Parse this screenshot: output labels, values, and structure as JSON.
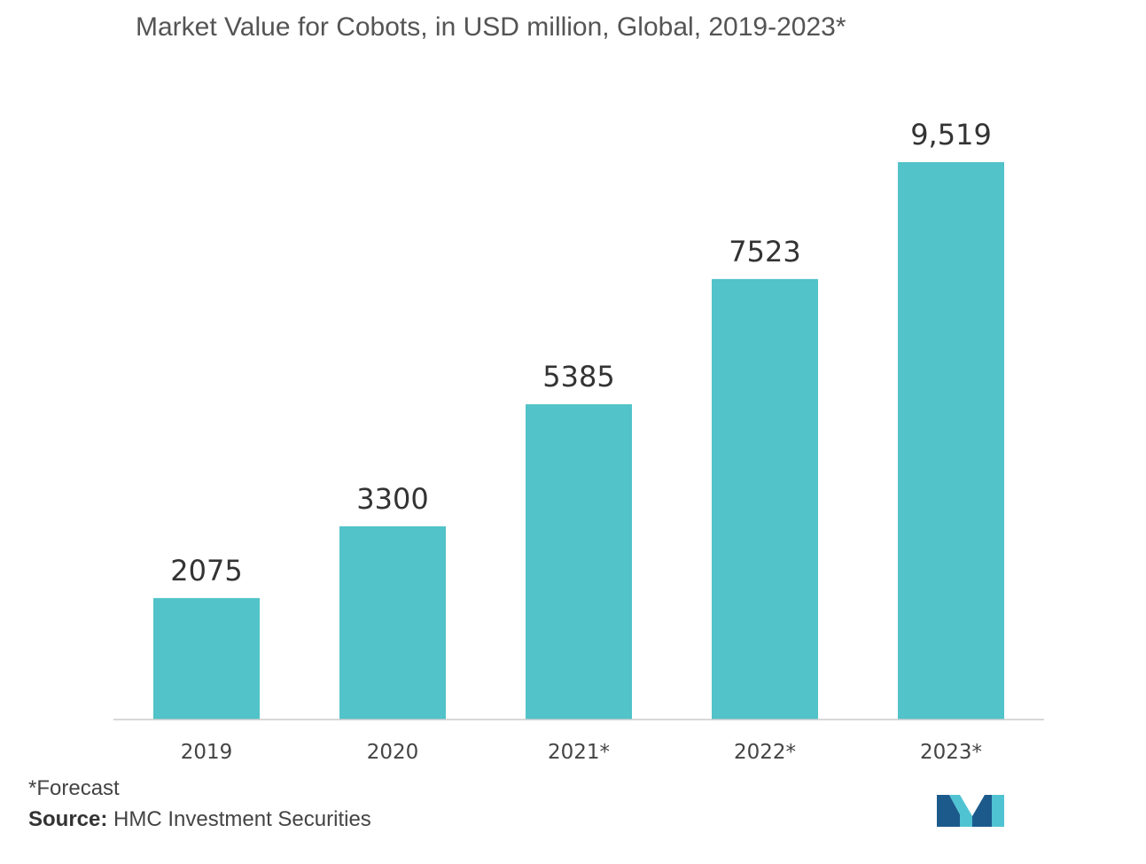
{
  "title": "Market Value for Cobots, in USD million, Global, 2019-2023*",
  "footnote": "*Forecast",
  "source": {
    "label": "Source:",
    "text": "HMC Investment Securities"
  },
  "colors": {
    "bar": "#51c3c9",
    "axis": "#cccccc",
    "logo_dark": "#1c5a8c",
    "logo_light": "#4fc3d1"
  },
  "chart_data": {
    "type": "bar",
    "title": "Market Value for Cobots, in USD million, Global, 2019-2023*",
    "xlabel": "",
    "ylabel": "",
    "categories": [
      "2019",
      "2020",
      "2021*",
      "2022*",
      "2023*"
    ],
    "values": [
      2075,
      3300,
      5385,
      7523,
      9519
    ],
    "value_labels": [
      "2075",
      "3300",
      "5385",
      "7523",
      "9,519"
    ],
    "ylim": [
      0,
      11000
    ],
    "grid": false,
    "legend": "none"
  }
}
